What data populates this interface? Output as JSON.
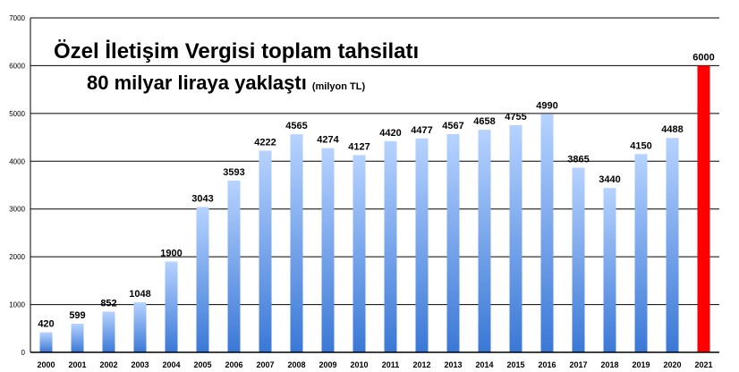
{
  "chart_data": {
    "type": "bar",
    "title_line1": "Özel İletişim Vergisi toplam tahsilatı",
    "title_line2": "80 milyar liraya yaklaştı",
    "unit": "(milyon TL)",
    "categories": [
      "2000",
      "2001",
      "2002",
      "2003",
      "2004",
      "2005",
      "2006",
      "2007",
      "2008",
      "2009",
      "2010",
      "2011",
      "2012",
      "2013",
      "2014",
      "2015",
      "2016",
      "2017",
      "2018",
      "2019",
      "2020",
      "2021"
    ],
    "values": [
      420,
      599,
      852,
      1048,
      1900,
      3043,
      3593,
      4222,
      4565,
      4274,
      4127,
      4420,
      4477,
      4567,
      4658,
      4755,
      4990,
      3865,
      3440,
      4150,
      4488,
      6000
    ],
    "ylim": [
      0,
      7000
    ],
    "yticks": [
      0,
      1000,
      2000,
      3000,
      4000,
      5000,
      6000,
      7000
    ],
    "grid": true,
    "highlight_index": 21,
    "colors": {
      "bar_top": "#b7d3ff",
      "bar_bottom": "#3a78d6",
      "highlight": "#ff0000",
      "grid": "#000000",
      "axis": "#000000"
    }
  }
}
